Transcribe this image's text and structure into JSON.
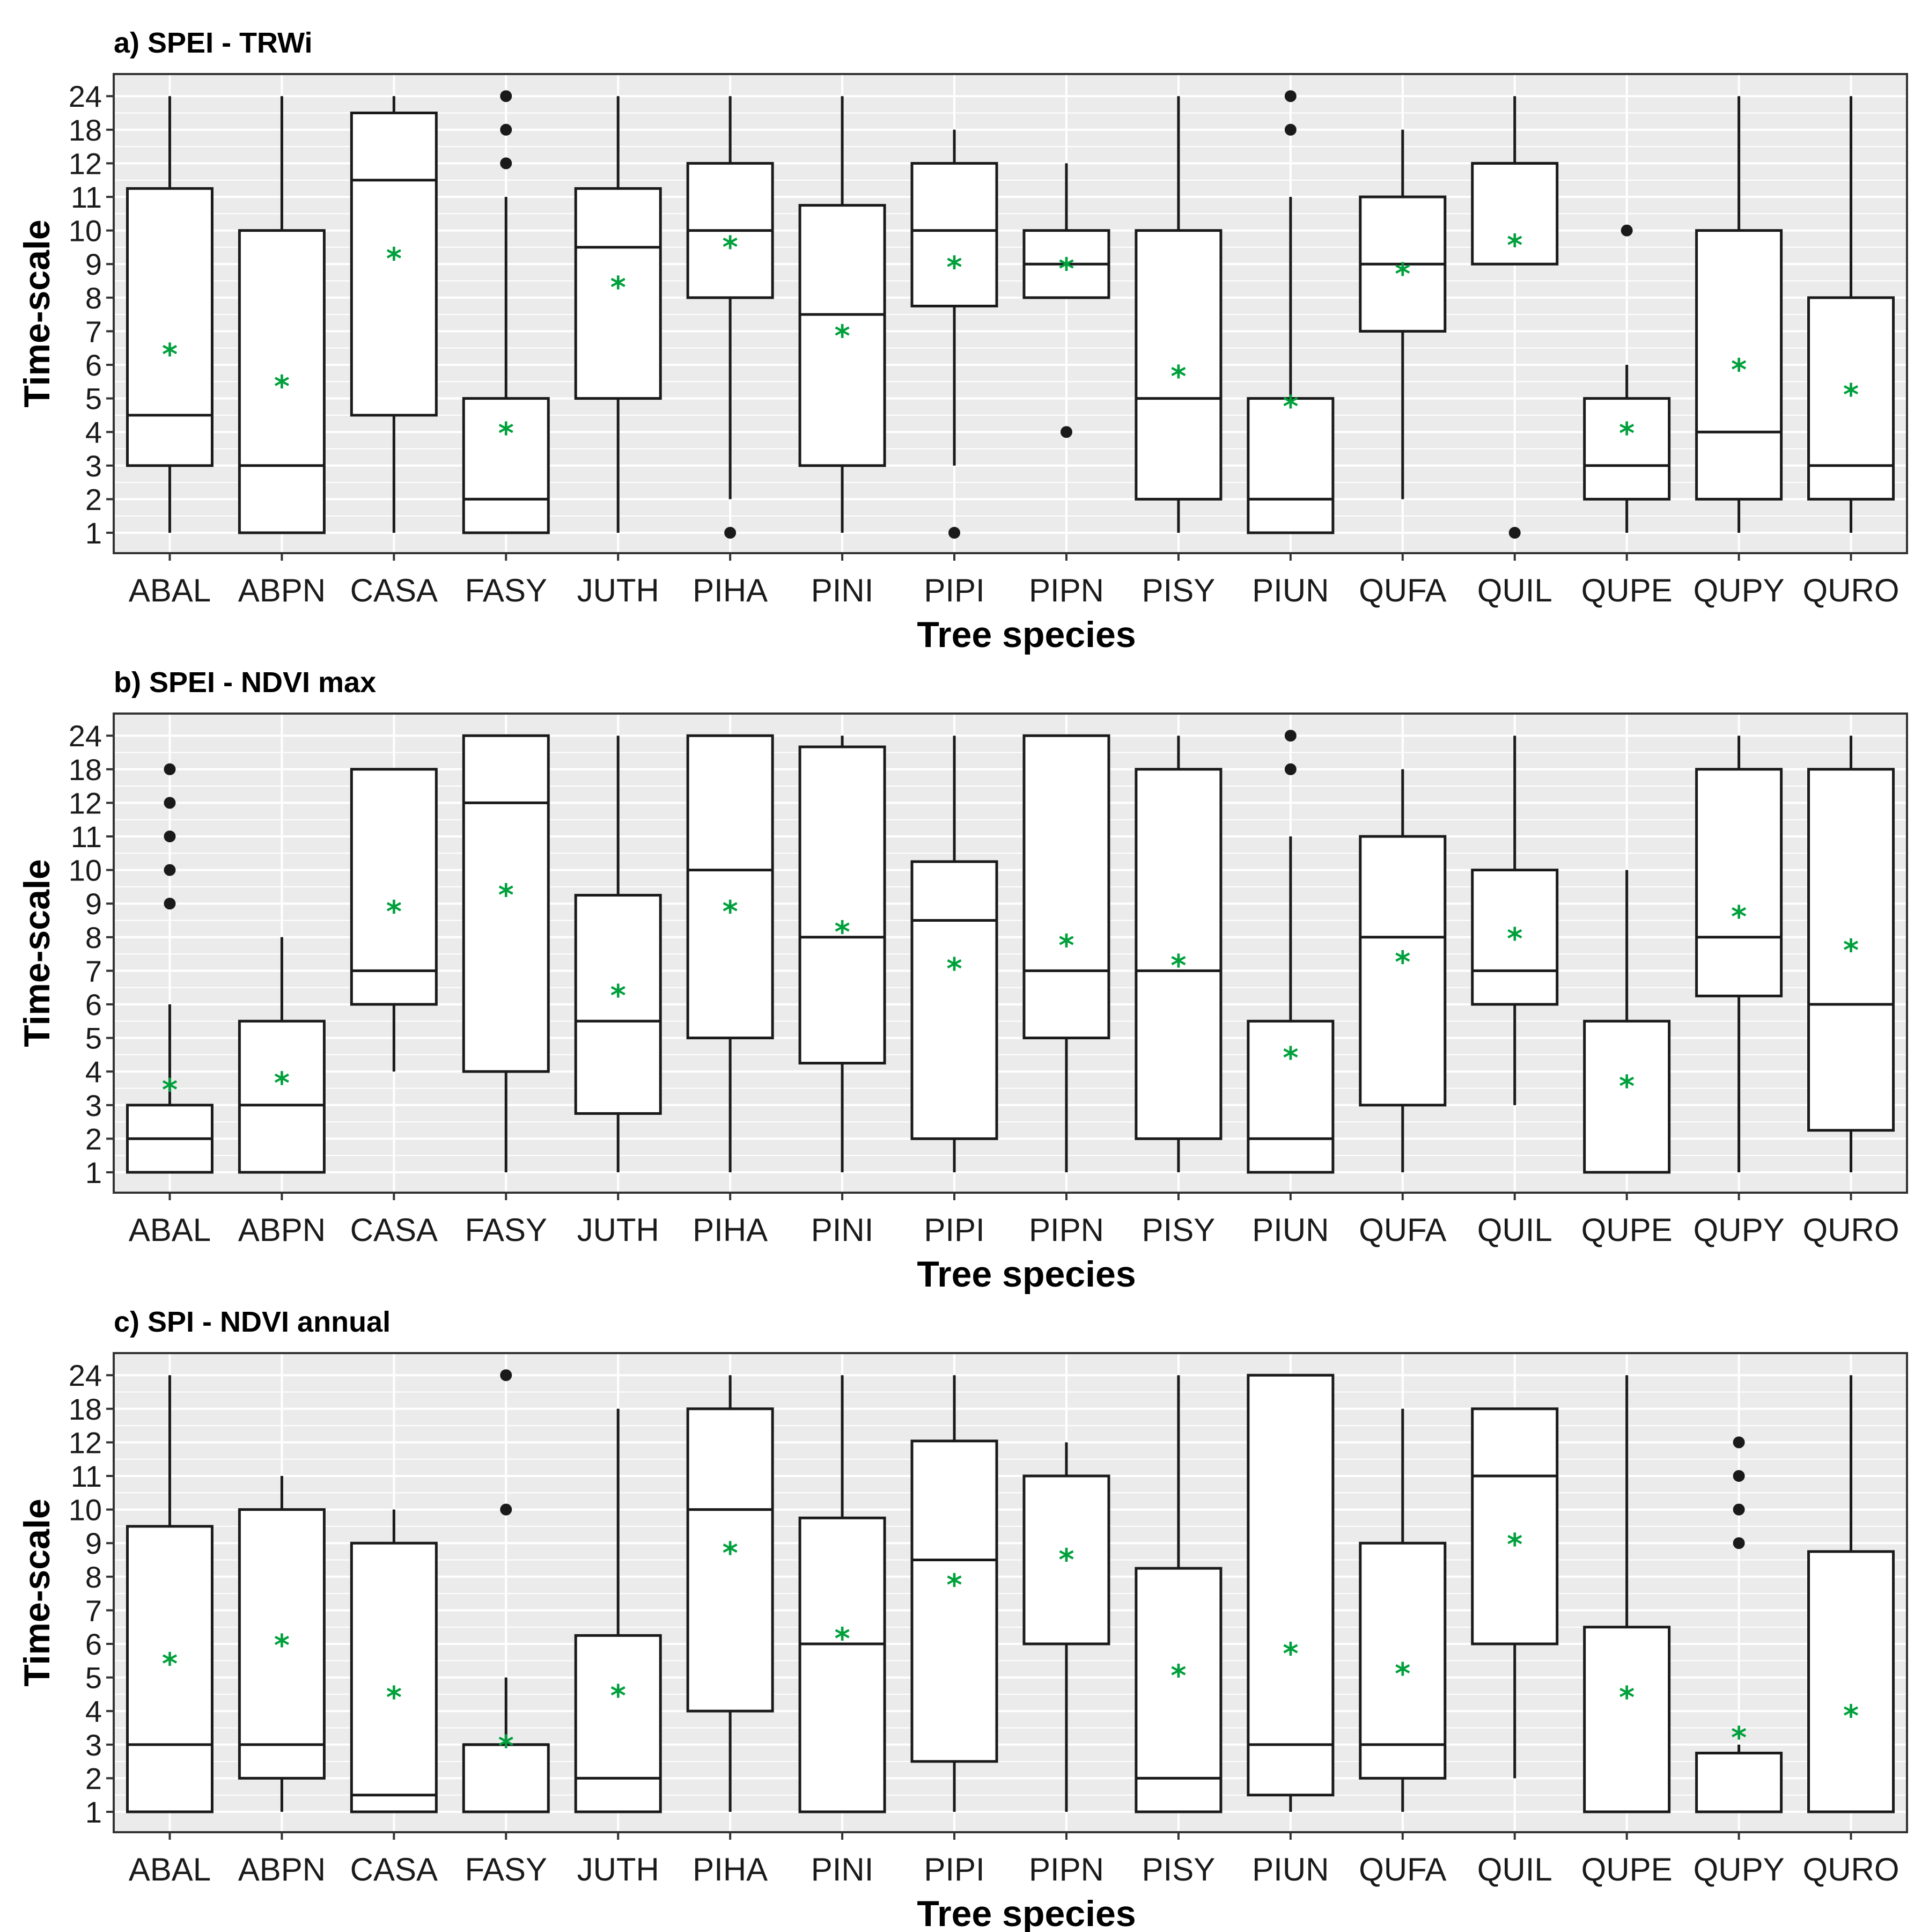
{
  "chart_data": [
    {
      "type": "box",
      "title": "a) SPEI - TRWi",
      "xlabel": "Tree species",
      "ylabel": "Time-scale",
      "categories": [
        "ABAL",
        "ABPN",
        "CASA",
        "FASY",
        "JUTH",
        "PIHA",
        "PINI",
        "PIPI",
        "PIPN",
        "PISY",
        "PIUN",
        "QUFA",
        "QUIL",
        "QUPE",
        "QUPY",
        "QURO"
      ],
      "ytick_labels": [
        "1",
        "2",
        "3",
        "4",
        "5",
        "6",
        "7",
        "8",
        "9",
        "10",
        "11",
        "12",
        "18",
        "24"
      ],
      "boxes": [
        {
          "min": 1,
          "q1": 3,
          "median": 4.5,
          "q3": 11.25,
          "max": 24,
          "mean": 6.35,
          "outliers": []
        },
        {
          "min": 1,
          "q1": 1,
          "median": 3,
          "q3": 10,
          "max": 24,
          "mean": 5.4,
          "outliers": []
        },
        {
          "min": 1,
          "q1": 4.5,
          "median": 11.5,
          "q3": 21,
          "max": 24,
          "mean": 9.2,
          "outliers": []
        },
        {
          "min": 1,
          "q1": 1,
          "median": 2,
          "q3": 5,
          "max": 11,
          "mean": 4,
          "outliers": [
            12,
            18,
            24
          ]
        },
        {
          "min": 1,
          "q1": 5,
          "median": 9.5,
          "q3": 11.25,
          "max": 24,
          "mean": 8.35,
          "outliers": []
        },
        {
          "min": 2,
          "q1": 8,
          "median": 10,
          "q3": 12,
          "max": 24,
          "mean": 9.55,
          "outliers": [
            1
          ]
        },
        {
          "min": 1,
          "q1": 3,
          "median": 7.5,
          "q3": 10.75,
          "max": 24,
          "mean": 6.9,
          "outliers": []
        },
        {
          "min": 3,
          "q1": 7.75,
          "median": 10,
          "q3": 12,
          "max": 18,
          "mean": 8.95,
          "outliers": [
            1
          ]
        },
        {
          "min": 8,
          "q1": 8,
          "median": 9,
          "q3": 10,
          "max": 12,
          "mean": 8.9,
          "outliers": [
            4
          ]
        },
        {
          "min": 1,
          "q1": 2,
          "median": 5,
          "q3": 10,
          "max": 24,
          "mean": 5.7,
          "outliers": []
        },
        {
          "min": 1,
          "q1": 1,
          "median": 2,
          "q3": 5,
          "max": 11,
          "mean": 4.8,
          "outliers": [
            18,
            24
          ]
        },
        {
          "min": 2,
          "q1": 7,
          "median": 9,
          "q3": 11,
          "max": 18,
          "mean": 8.75,
          "outliers": []
        },
        {
          "min": 9,
          "q1": 9,
          "median": 12,
          "q3": 12,
          "max": 24,
          "mean": 9.6,
          "outliers": [
            1
          ]
        },
        {
          "min": 1,
          "q1": 2,
          "median": 3,
          "q3": 5,
          "max": 6,
          "mean": 4,
          "outliers": [
            10
          ]
        },
        {
          "min": 1,
          "q1": 2,
          "median": 4,
          "q3": 10,
          "max": 24,
          "mean": 5.9,
          "outliers": []
        },
        {
          "min": 1,
          "q1": 2,
          "median": 3,
          "q3": 8,
          "max": 24,
          "mean": 5.15,
          "outliers": []
        }
      ]
    },
    {
      "type": "box",
      "title": "b) SPEI - NDVI max",
      "xlabel": "Tree species",
      "ylabel": "Time-scale",
      "categories": [
        "ABAL",
        "ABPN",
        "CASA",
        "FASY",
        "JUTH",
        "PIHA",
        "PINI",
        "PIPI",
        "PIPN",
        "PISY",
        "PIUN",
        "QUFA",
        "QUIL",
        "QUPE",
        "QUPY",
        "QURO"
      ],
      "ytick_labels": [
        "1",
        "2",
        "3",
        "4",
        "5",
        "6",
        "7",
        "8",
        "9",
        "10",
        "11",
        "12",
        "18",
        "24"
      ],
      "boxes": [
        {
          "min": 1,
          "q1": 1,
          "median": 2,
          "q3": 3,
          "max": 6,
          "mean": 3.5,
          "outliers": [
            9,
            10,
            11,
            12,
            18
          ]
        },
        {
          "min": 1,
          "q1": 1,
          "median": 3,
          "q3": 5.5,
          "max": 8,
          "mean": 3.7,
          "outliers": []
        },
        {
          "min": 4,
          "q1": 6,
          "median": 7,
          "q3": 18,
          "max": 18,
          "mean": 8.8,
          "outliers": []
        },
        {
          "min": 1,
          "q1": 4,
          "median": 12,
          "q3": 24,
          "max": 24,
          "mean": 9.3,
          "outliers": []
        },
        {
          "min": 1,
          "q1": 2.75,
          "median": 5.5,
          "q3": 9.25,
          "max": 24,
          "mean": 6.3,
          "outliers": []
        },
        {
          "min": 1,
          "q1": 5,
          "median": 10,
          "q3": 24,
          "max": 24,
          "mean": 8.8,
          "outliers": []
        },
        {
          "min": 1,
          "q1": 4.25,
          "median": 8,
          "q3": 22,
          "max": 24,
          "mean": 8.2,
          "outliers": []
        },
        {
          "min": 1,
          "q1": 2,
          "median": 8.5,
          "q3": 10.25,
          "max": 24,
          "mean": 7.1,
          "outliers": []
        },
        {
          "min": 1,
          "q1": 5,
          "median": 7,
          "q3": 24,
          "max": 24,
          "mean": 7.8,
          "outliers": []
        },
        {
          "min": 1,
          "q1": 2,
          "median": 7,
          "q3": 18,
          "max": 24,
          "mean": 7.2,
          "outliers": []
        },
        {
          "min": 1,
          "q1": 1,
          "median": 2,
          "q3": 5.5,
          "max": 11,
          "mean": 4.45,
          "outliers": [
            18,
            24
          ]
        },
        {
          "min": 1,
          "q1": 3,
          "median": 8,
          "q3": 11,
          "max": 18,
          "mean": 7.3,
          "outliers": []
        },
        {
          "min": 3,
          "q1": 6,
          "median": 7,
          "q3": 10,
          "max": 24,
          "mean": 8,
          "outliers": []
        },
        {
          "min": 1,
          "q1": 1,
          "median": 1,
          "q3": 5.5,
          "max": 10,
          "mean": 3.6,
          "outliers": []
        },
        {
          "min": 1,
          "q1": 6.25,
          "median": 8,
          "q3": 18,
          "max": 24,
          "mean": 8.65,
          "outliers": []
        },
        {
          "min": 1,
          "q1": 2.25,
          "median": 6,
          "q3": 18,
          "max": 24,
          "mean": 7.65,
          "outliers": []
        }
      ]
    },
    {
      "type": "box",
      "title": "c) SPI - NDVI annual",
      "xlabel": "Tree species",
      "ylabel": "Time-scale",
      "categories": [
        "ABAL",
        "ABPN",
        "CASA",
        "FASY",
        "JUTH",
        "PIHA",
        "PINI",
        "PIPI",
        "PIPN",
        "PISY",
        "PIUN",
        "QUFA",
        "QUIL",
        "QUPE",
        "QUPY",
        "QURO"
      ],
      "ytick_labels": [
        "1",
        "2",
        "3",
        "4",
        "5",
        "6",
        "7",
        "8",
        "9",
        "10",
        "11",
        "12",
        "18",
        "24"
      ],
      "boxes": [
        {
          "min": 1,
          "q1": 1,
          "median": 3,
          "q3": 9.5,
          "max": 24,
          "mean": 5.45,
          "outliers": []
        },
        {
          "min": 1,
          "q1": 2,
          "median": 3,
          "q3": 10,
          "max": 11,
          "mean": 6,
          "outliers": []
        },
        {
          "min": 1,
          "q1": 1,
          "median": 1.5,
          "q3": 9,
          "max": 10,
          "mean": 4.45,
          "outliers": []
        },
        {
          "min": 1,
          "q1": 1,
          "median": 3,
          "q3": 3,
          "max": 5,
          "mean": 3,
          "outliers": [
            10,
            24
          ]
        },
        {
          "min": 1,
          "q1": 1,
          "median": 2,
          "q3": 6.25,
          "max": 18,
          "mean": 4.5,
          "outliers": []
        },
        {
          "min": 1,
          "q1": 4,
          "median": 10,
          "q3": 18,
          "max": 24,
          "mean": 8.75,
          "outliers": []
        },
        {
          "min": 1,
          "q1": 1,
          "median": 6,
          "q3": 9.75,
          "max": 24,
          "mean": 6.2,
          "outliers": []
        },
        {
          "min": 1,
          "q1": 2.5,
          "median": 8.5,
          "q3": 12.25,
          "max": 24,
          "mean": 7.8,
          "outliers": []
        },
        {
          "min": 1,
          "q1": 6,
          "median": 11,
          "q3": 11,
          "max": 12,
          "mean": 8.55,
          "outliers": []
        },
        {
          "min": 1,
          "q1": 1,
          "median": 2,
          "q3": 8.25,
          "max": 24,
          "mean": 5.1,
          "outliers": []
        },
        {
          "min": 1,
          "q1": 1.5,
          "median": 3,
          "q3": 24,
          "max": 24,
          "mean": 5.75,
          "outliers": []
        },
        {
          "min": 1,
          "q1": 2,
          "median": 3,
          "q3": 9,
          "max": 18,
          "mean": 5.15,
          "outliers": []
        },
        {
          "min": 2,
          "q1": 6,
          "median": 11,
          "q3": 18,
          "max": 18,
          "mean": 9,
          "outliers": []
        },
        {
          "min": 1,
          "q1": 1,
          "median": 1,
          "q3": 6.5,
          "max": 24,
          "mean": 4.45,
          "outliers": []
        },
        {
          "min": 1,
          "q1": 1,
          "median": 2.75,
          "q3": 2.75,
          "max": 3,
          "mean": 3.25,
          "outliers": [
            9,
            10,
            11,
            12
          ]
        },
        {
          "min": 1,
          "q1": 1,
          "median": 1,
          "q3": 8.75,
          "max": 24,
          "mean": 3.9,
          "outliers": []
        }
      ]
    }
  ],
  "mean_marker": "*",
  "colors": {
    "panel_bg": "#ebebeb",
    "grid": "#ffffff",
    "box_stroke": "#1a1a1a",
    "mean": "#00a03c",
    "text": "#000000"
  }
}
